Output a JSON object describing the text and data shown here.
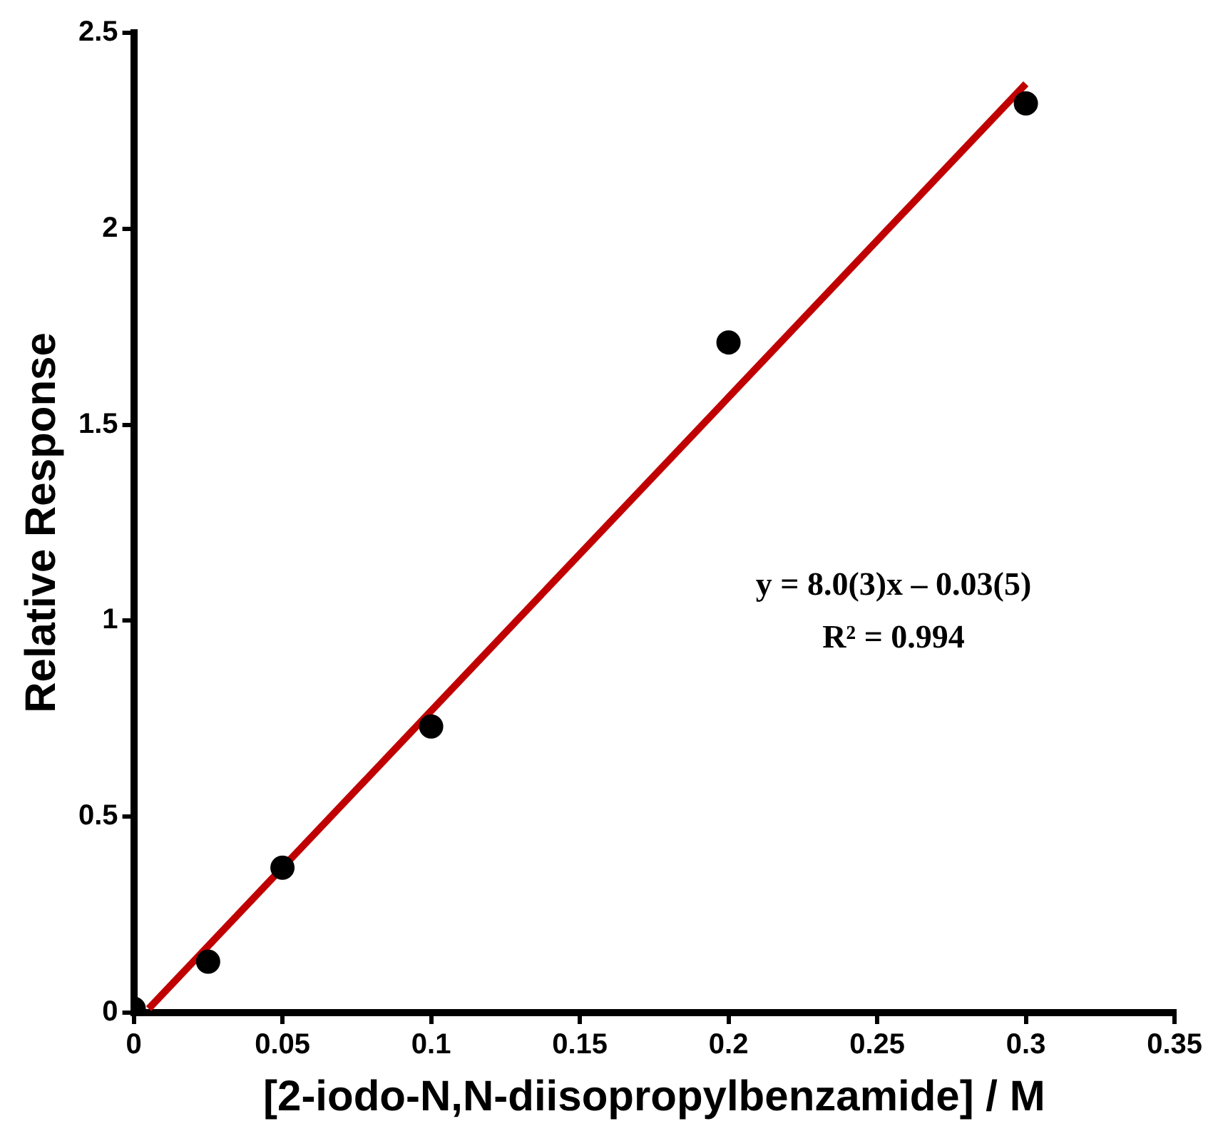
{
  "chart_data": {
    "type": "scatter",
    "xlabel": "[2-iodo-N,N-diisopropylbenzamide] / M",
    "ylabel": "Relative Response",
    "series": [
      {
        "type": "scatter",
        "marker": "circle",
        "color": "#000000",
        "x": [
          0,
          0.025,
          0.05,
          0.1,
          0.2,
          0.3
        ],
        "values": [
          0.01,
          0.13,
          0.37,
          0.73,
          1.71,
          2.32
        ]
      },
      {
        "type": "line",
        "marker": "none",
        "color": "#c00000",
        "x": [
          0.005,
          0.3
        ],
        "values": [
          0.01,
          2.37
        ]
      }
    ],
    "xlim": [
      0,
      0.35
    ],
    "xticks": [
      0,
      0.05,
      0.1,
      0.15,
      0.2,
      0.25,
      0.3,
      0.35
    ],
    "ylim": [
      0,
      2.5
    ],
    "yticks": [
      0,
      0.5,
      1,
      1.5,
      2,
      2.5
    ],
    "annotations": [
      "y = 8.0(3)x – 0.03(5)",
      "R² = 0.994"
    ],
    "line_style": "solid",
    "grid": false,
    "legend": false
  }
}
